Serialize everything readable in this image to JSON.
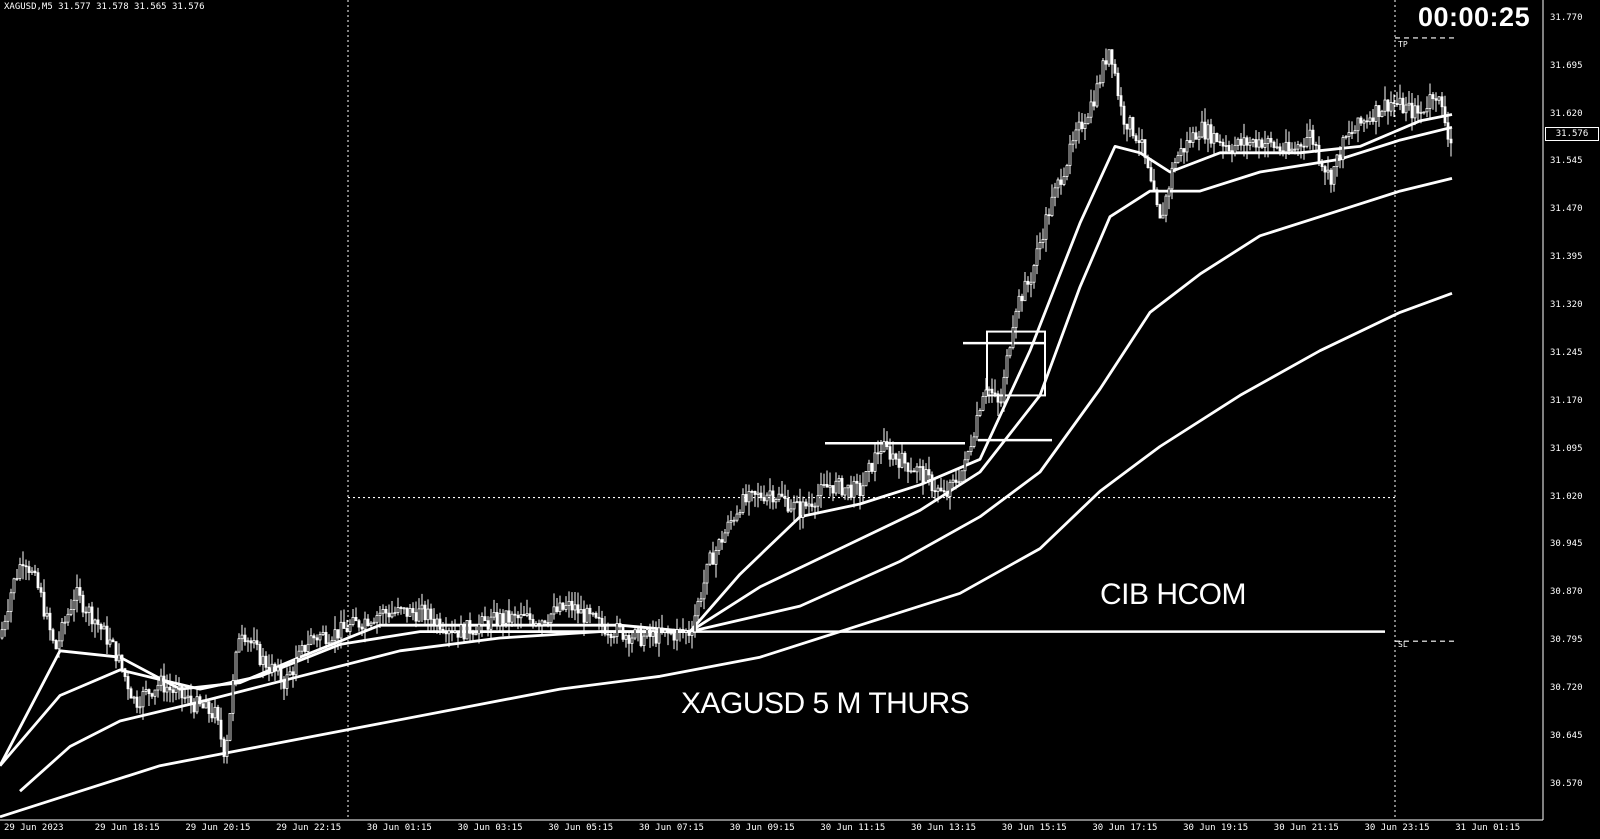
{
  "symbol_info": "XAGUSD,M5 31.577 31.578 31.565 31.576",
  "timer": "00:00:25",
  "annotations": {
    "cib": "CIB  HCOM",
    "title": "XAGUSD 5 M   THURS"
  },
  "price_tag": "31.576",
  "level_labels": {
    "tp": "TP",
    "sl": "SL"
  },
  "colors": {
    "background": "#000000",
    "foreground": "#ffffff"
  },
  "chart_data": {
    "type": "candlestick",
    "symbol": "XAGUSD",
    "timeframe": "M5",
    "y_ticks": [
      "31.770",
      "31.695",
      "31.620",
      "31.545",
      "31.470",
      "31.395",
      "31.320",
      "31.245",
      "31.170",
      "31.095",
      "31.020",
      "30.945",
      "30.870",
      "30.795",
      "30.720",
      "30.645",
      "30.570"
    ],
    "ylim": [
      30.54,
      31.79
    ],
    "x_ticks": [
      "29 Jun 2023",
      "29 Jun 18:15",
      "29 Jun 20:15",
      "29 Jun 22:15",
      "30 Jun 01:15",
      "30 Jun 03:15",
      "30 Jun 05:15",
      "30 Jun 07:15",
      "30 Jun 09:15",
      "30 Jun 11:15",
      "30 Jun 13:15",
      "30 Jun 15:15",
      "30 Jun 17:15",
      "30 Jun 19:15",
      "30 Jun 21:15",
      "30 Jun 23:15",
      "31 Jun 01:15"
    ],
    "price_path": [
      [
        0,
        30.8
      ],
      [
        12,
        30.88
      ],
      [
        24,
        30.93
      ],
      [
        40,
        30.87
      ],
      [
        55,
        30.78
      ],
      [
        75,
        30.87
      ],
      [
        95,
        30.83
      ],
      [
        115,
        30.78
      ],
      [
        135,
        30.7
      ],
      [
        160,
        30.73
      ],
      [
        190,
        30.7
      ],
      [
        215,
        30.68
      ],
      [
        225,
        30.62
      ],
      [
        240,
        30.82
      ],
      [
        260,
        30.77
      ],
      [
        285,
        30.73
      ],
      [
        310,
        30.8
      ],
      [
        340,
        30.81
      ],
      [
        380,
        30.84
      ],
      [
        420,
        30.84
      ],
      [
        460,
        30.81
      ],
      [
        500,
        30.83
      ],
      [
        540,
        30.83
      ],
      [
        570,
        30.85
      ],
      [
        600,
        30.82
      ],
      [
        640,
        30.8
      ],
      [
        690,
        30.81
      ],
      [
        710,
        30.92
      ],
      [
        740,
        31.01
      ],
      [
        770,
        31.03
      ],
      [
        800,
        31.0
      ],
      [
        830,
        31.04
      ],
      [
        860,
        31.03
      ],
      [
        880,
        31.1
      ],
      [
        920,
        31.06
      ],
      [
        945,
        31.02
      ],
      [
        965,
        31.07
      ],
      [
        985,
        31.2
      ],
      [
        1000,
        31.16
      ],
      [
        1015,
        31.32
      ],
      [
        1030,
        31.36
      ],
      [
        1045,
        31.45
      ],
      [
        1060,
        31.52
      ],
      [
        1080,
        31.6
      ],
      [
        1095,
        31.65
      ],
      [
        1110,
        31.73
      ],
      [
        1122,
        31.62
      ],
      [
        1140,
        31.58
      ],
      [
        1160,
        31.45
      ],
      [
        1175,
        31.55
      ],
      [
        1200,
        31.6
      ],
      [
        1230,
        31.57
      ],
      [
        1260,
        31.58
      ],
      [
        1290,
        31.56
      ],
      [
        1310,
        31.59
      ],
      [
        1330,
        31.52
      ],
      [
        1345,
        31.58
      ],
      [
        1370,
        31.62
      ],
      [
        1390,
        31.64
      ],
      [
        1420,
        31.62
      ],
      [
        1435,
        31.66
      ],
      [
        1445,
        31.61
      ],
      [
        1450,
        31.58
      ]
    ],
    "moving_averages": [
      {
        "points": [
          [
            0,
            30.6
          ],
          [
            60,
            30.78
          ],
          [
            120,
            30.77
          ],
          [
            180,
            30.72
          ],
          [
            240,
            30.73
          ],
          [
            300,
            30.77
          ],
          [
            380,
            30.82
          ],
          [
            460,
            30.82
          ],
          [
            540,
            30.82
          ],
          [
            620,
            30.82
          ],
          [
            690,
            30.81
          ],
          [
            740,
            30.9
          ],
          [
            800,
            30.99
          ],
          [
            860,
            31.01
          ],
          [
            920,
            31.04
          ],
          [
            980,
            31.08
          ],
          [
            1030,
            31.25
          ],
          [
            1080,
            31.45
          ],
          [
            1115,
            31.57
          ],
          [
            1140,
            31.56
          ],
          [
            1170,
            31.53
          ],
          [
            1220,
            31.56
          ],
          [
            1300,
            31.56
          ],
          [
            1360,
            31.57
          ],
          [
            1420,
            31.61
          ],
          [
            1452,
            31.62
          ]
        ]
      },
      {
        "points": [
          [
            0,
            30.6
          ],
          [
            60,
            30.71
          ],
          [
            120,
            30.75
          ],
          [
            200,
            30.72
          ],
          [
            260,
            30.74
          ],
          [
            340,
            30.79
          ],
          [
            420,
            30.81
          ],
          [
            500,
            30.81
          ],
          [
            600,
            30.81
          ],
          [
            690,
            30.81
          ],
          [
            760,
            30.88
          ],
          [
            840,
            30.94
          ],
          [
            920,
            31.0
          ],
          [
            980,
            31.06
          ],
          [
            1040,
            31.18
          ],
          [
            1080,
            31.35
          ],
          [
            1110,
            31.46
          ],
          [
            1150,
            31.5
          ],
          [
            1200,
            31.5
          ],
          [
            1260,
            31.53
          ],
          [
            1340,
            31.55
          ],
          [
            1400,
            31.58
          ],
          [
            1452,
            31.6
          ]
        ]
      },
      {
        "points": [
          [
            20,
            30.56
          ],
          [
            70,
            30.63
          ],
          [
            120,
            30.67
          ],
          [
            200,
            30.7
          ],
          [
            300,
            30.74
          ],
          [
            400,
            30.78
          ],
          [
            500,
            30.8
          ],
          [
            600,
            30.81
          ],
          [
            690,
            30.81
          ],
          [
            800,
            30.85
          ],
          [
            900,
            30.92
          ],
          [
            980,
            30.99
          ],
          [
            1040,
            31.06
          ],
          [
            1100,
            31.19
          ],
          [
            1150,
            31.31
          ],
          [
            1200,
            31.37
          ],
          [
            1260,
            31.43
          ],
          [
            1340,
            31.47
          ],
          [
            1400,
            31.5
          ],
          [
            1452,
            31.52
          ]
        ]
      },
      {
        "points": [
          [
            0,
            30.52
          ],
          [
            80,
            30.56
          ],
          [
            160,
            30.6
          ],
          [
            260,
            30.63
          ],
          [
            360,
            30.66
          ],
          [
            460,
            30.69
          ],
          [
            560,
            30.72
          ],
          [
            660,
            30.74
          ],
          [
            760,
            30.77
          ],
          [
            860,
            30.82
          ],
          [
            960,
            30.87
          ],
          [
            1040,
            30.94
          ],
          [
            1100,
            31.03
          ],
          [
            1160,
            31.1
          ],
          [
            1240,
            31.18
          ],
          [
            1320,
            31.25
          ],
          [
            1400,
            31.31
          ],
          [
            1452,
            31.34
          ]
        ]
      }
    ],
    "horizontal_levels": [
      {
        "price": 30.81,
        "x_start": 690,
        "x_end": 1385,
        "style": "solid"
      },
      {
        "price": 31.02,
        "x_start": 348,
        "x_end": 1395,
        "style": "dotted"
      },
      {
        "price": 31.105,
        "x_start": 825,
        "x_end": 965,
        "style": "solid"
      },
      {
        "price": 31.11,
        "x_start": 978,
        "x_end": 1052,
        "style": "solid"
      },
      {
        "price": 31.262,
        "x_start": 963,
        "x_end": 1045,
        "style": "solid"
      },
      {
        "price": 31.74,
        "x_start": 1395,
        "x_end": 1455,
        "style": "dashed"
      },
      {
        "price": 30.795,
        "x_start": 1395,
        "x_end": 1455,
        "style": "dashed"
      }
    ],
    "boxes": [
      {
        "x1": 987,
        "x2": 1045,
        "p_top": 31.28,
        "p_bottom": 31.18
      }
    ],
    "vertical_separators": [
      {
        "x": 348,
        "style": "dotted"
      },
      {
        "x": 1395,
        "style": "dotted"
      }
    ],
    "grid": false
  }
}
